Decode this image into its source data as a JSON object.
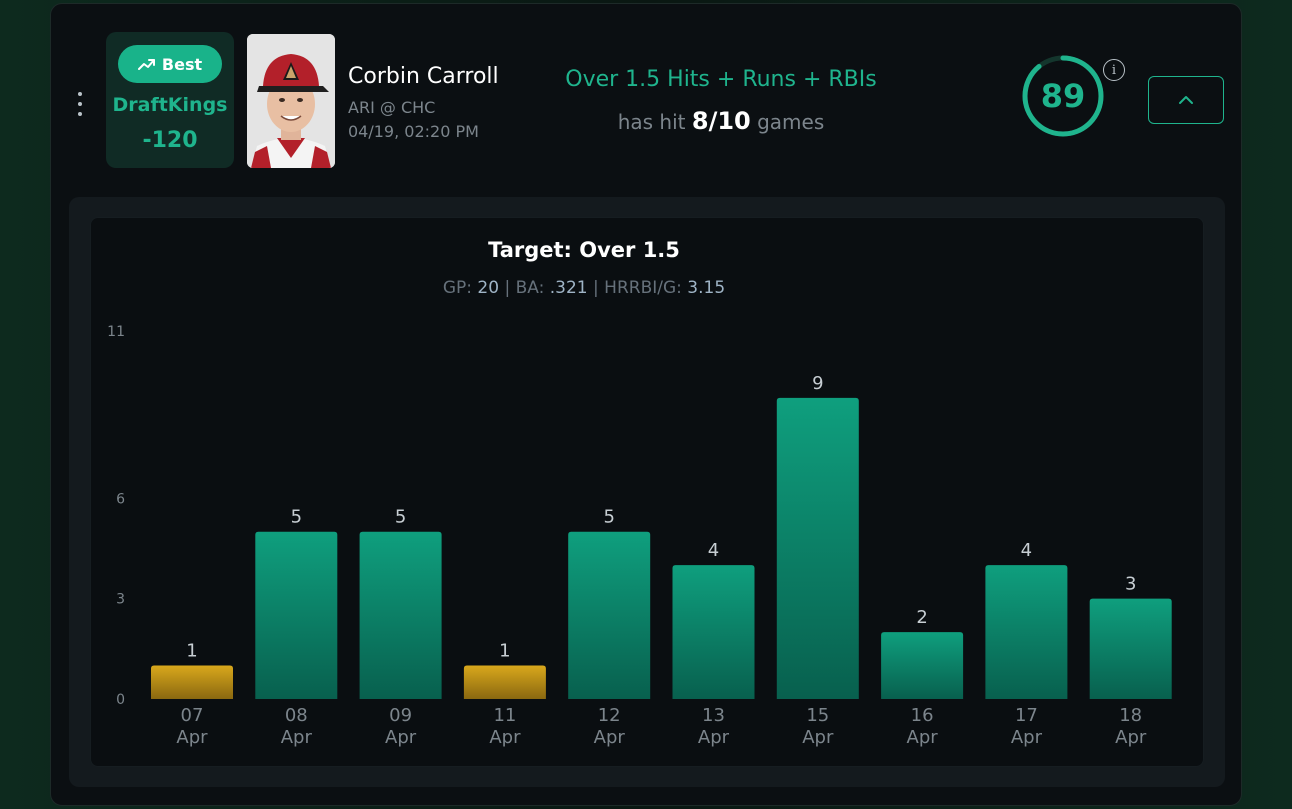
{
  "card": {
    "best_label": "Best",
    "book": {
      "name": "DraftKings",
      "odds": "-120"
    },
    "player": {
      "name": "Corbin Carroll",
      "matchup": "ARI @ CHC",
      "datetime": "04/19, 02:20 PM"
    },
    "prop": {
      "title": "Over 1.5 Hits + Runs + RBIs",
      "hit_prefix": "has hit",
      "hit_ratio": "8/10",
      "hit_suffix": "games"
    },
    "score": {
      "value": "89",
      "fraction": 0.89
    },
    "colors": {
      "accent": "#1fb48d",
      "miss": "#d2a21a",
      "bg": "#0b0f12"
    },
    "icons": {
      "menu": "vertical-dots-icon",
      "trend": "trending-up-icon",
      "info": "info-icon",
      "collapse": "chevron-up-icon"
    }
  },
  "chart_data": {
    "type": "bar",
    "title": "Target: Over 1.5",
    "stats": [
      {
        "label": "GP:",
        "value": "20"
      },
      {
        "label": "BA:",
        "value": ".321"
      },
      {
        "label": "HRRBI/G:",
        "value": "3.15"
      }
    ],
    "categories": [
      [
        "07",
        "Apr"
      ],
      [
        "08",
        "Apr"
      ],
      [
        "09",
        "Apr"
      ],
      [
        "11",
        "Apr"
      ],
      [
        "12",
        "Apr"
      ],
      [
        "13",
        "Apr"
      ],
      [
        "15",
        "Apr"
      ],
      [
        "16",
        "Apr"
      ],
      [
        "17",
        "Apr"
      ],
      [
        "18",
        "Apr"
      ]
    ],
    "values": [
      1,
      5,
      5,
      1,
      5,
      4,
      9,
      2,
      4,
      3
    ],
    "target": 1.5,
    "yticks": [
      0,
      3,
      6,
      11
    ],
    "ylim": [
      0,
      11
    ],
    "grid": false
  }
}
